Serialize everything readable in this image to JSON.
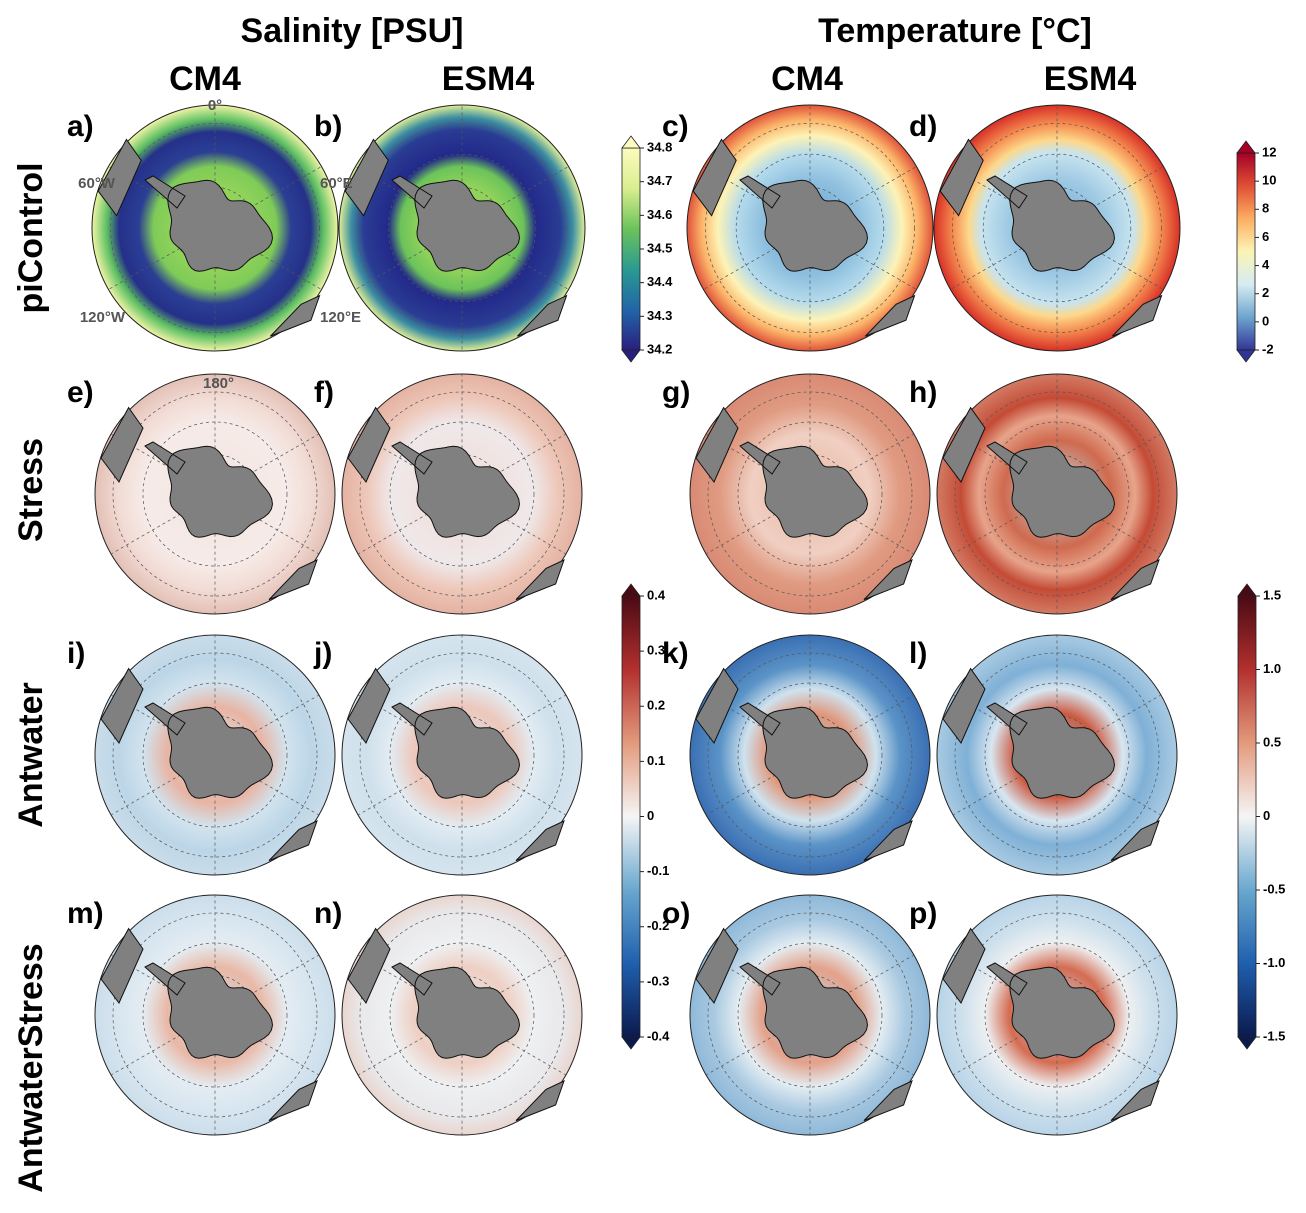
{
  "header": {
    "titles": [
      "Salinity [PSU]",
      "Temperature [°C]"
    ],
    "columns": [
      "CM4",
      "ESM4",
      "CM4",
      "ESM4"
    ],
    "rows": [
      "piControl",
      "Stress",
      "Antwater",
      "AntwaterStress"
    ]
  },
  "panels": [
    "a)",
    "b)",
    "c)",
    "d)",
    "e)",
    "f)",
    "g)",
    "h)",
    "i)",
    "j)",
    "k)",
    "l)",
    "m)",
    "n)",
    "o)",
    "p)"
  ],
  "longitude_labels": [
    "0°",
    "60°E",
    "120°E",
    "180°",
    "120°W",
    "60°W"
  ],
  "colorbars": [
    {
      "lim": [
        34.2,
        34.8
      ],
      "ticks": [
        34.2,
        34.3,
        34.4,
        34.5,
        34.6,
        34.7,
        34.8
      ],
      "colors": [
        "#2a1f7f",
        "#2166a8",
        "#2b9a91",
        "#6cc35a",
        "#d9ee8f",
        "#fdfbbf"
      ]
    },
    {
      "lim": [
        -2,
        12
      ],
      "ticks": [
        -2,
        0,
        2,
        4,
        6,
        8,
        10,
        12
      ],
      "colors": [
        "#313695",
        "#6da5cf",
        "#d6ecf2",
        "#fbf4b6",
        "#fcae61",
        "#e04f35",
        "#a50026"
      ]
    },
    {
      "lim": [
        -0.4,
        0.4
      ],
      "ticks": [
        -0.4,
        -0.3,
        -0.2,
        -0.1,
        0,
        0.1,
        0.2,
        0.3,
        0.4
      ],
      "colors": [
        "#0b1a4e",
        "#1f5fae",
        "#6aa8cf",
        "#f5f5f5",
        "#e39a7d",
        "#b3302e",
        "#4a0a14"
      ]
    },
    {
      "lim": [
        -1.5,
        1.5
      ],
      "ticks": [
        -1.5,
        {
          "value": -1,
          "label": "-1.0"
        },
        -0.5,
        0,
        0.5,
        {
          "value": 1,
          "label": "1.0"
        },
        1.5
      ],
      "colors": [
        "#0b1a4e",
        "#1f5fae",
        "#6aa8cf",
        "#f5f5f5",
        "#e39a7d",
        "#b3302e",
        "#4a0a14"
      ]
    }
  ]
}
